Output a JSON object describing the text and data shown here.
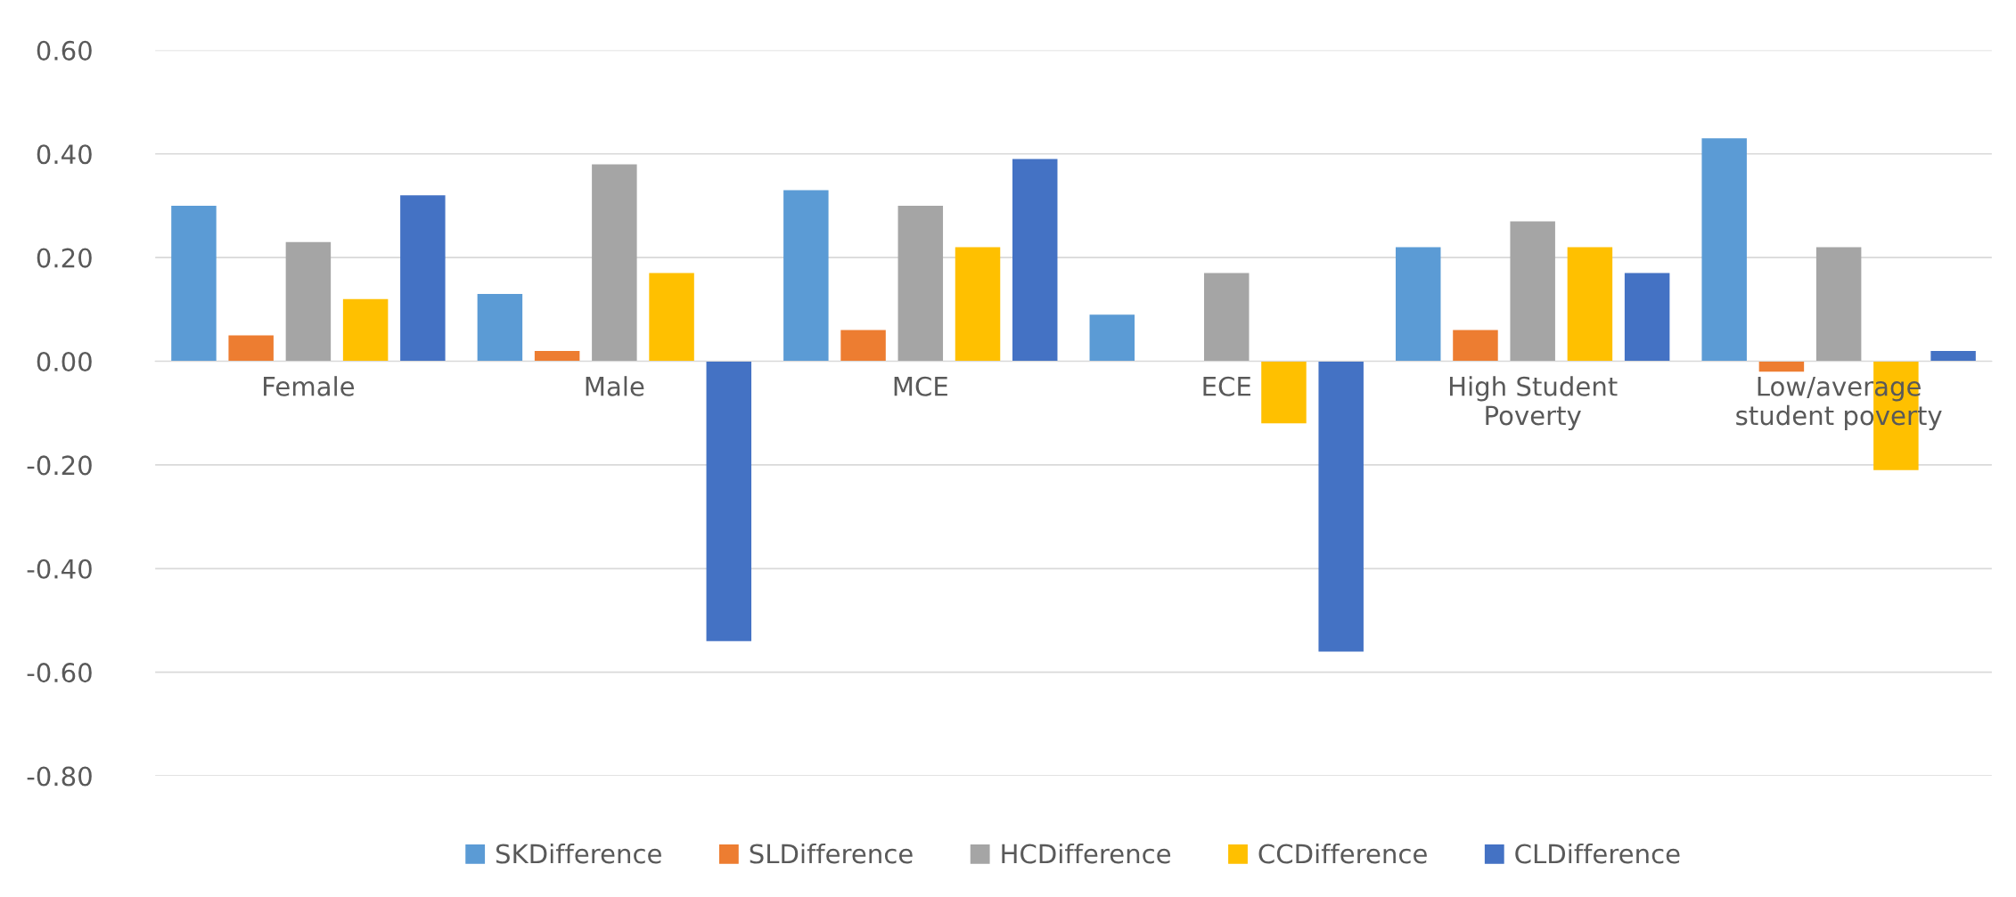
{
  "chart_data": {
    "type": "bar",
    "categories": [
      "Female",
      "Male",
      "MCE",
      "ECE",
      "High Student\nPoverty",
      "Low/average\nstudent poverty"
    ],
    "series": [
      {
        "name": "SKDifference",
        "color": "#5b9bd5",
        "values": [
          0.3,
          0.13,
          0.33,
          0.09,
          0.22,
          0.43
        ]
      },
      {
        "name": "SLDifference",
        "color": "#ed7d31",
        "values": [
          0.05,
          0.02,
          0.06,
          0.0,
          0.06,
          -0.02
        ]
      },
      {
        "name": "HCDifference",
        "color": "#a5a5a5",
        "values": [
          0.23,
          0.38,
          0.3,
          0.17,
          0.27,
          0.22
        ]
      },
      {
        "name": "CCDifference",
        "color": "#ffc000",
        "values": [
          0.12,
          0.17,
          0.22,
          -0.12,
          0.22,
          -0.21
        ]
      },
      {
        "name": "CLDifference",
        "color": "#4472c4",
        "values": [
          0.32,
          -0.54,
          0.39,
          -0.56,
          0.17,
          0.02
        ]
      }
    ],
    "ylim": [
      -0.8,
      0.6
    ],
    "yticks": [
      {
        "value": -0.8,
        "label": "-0.80"
      },
      {
        "value": -0.6,
        "label": "-0.60"
      },
      {
        "value": -0.4,
        "label": "-0.40"
      },
      {
        "value": -0.2,
        "label": "-0.20"
      },
      {
        "value": 0,
        "label": "0.00"
      },
      {
        "value": 0.2,
        "label": "0.20"
      },
      {
        "value": 0.4,
        "label": "0.40"
      },
      {
        "value": 0.6,
        "label": "0.60"
      }
    ],
    "grid": "y",
    "legend": "bottom"
  }
}
